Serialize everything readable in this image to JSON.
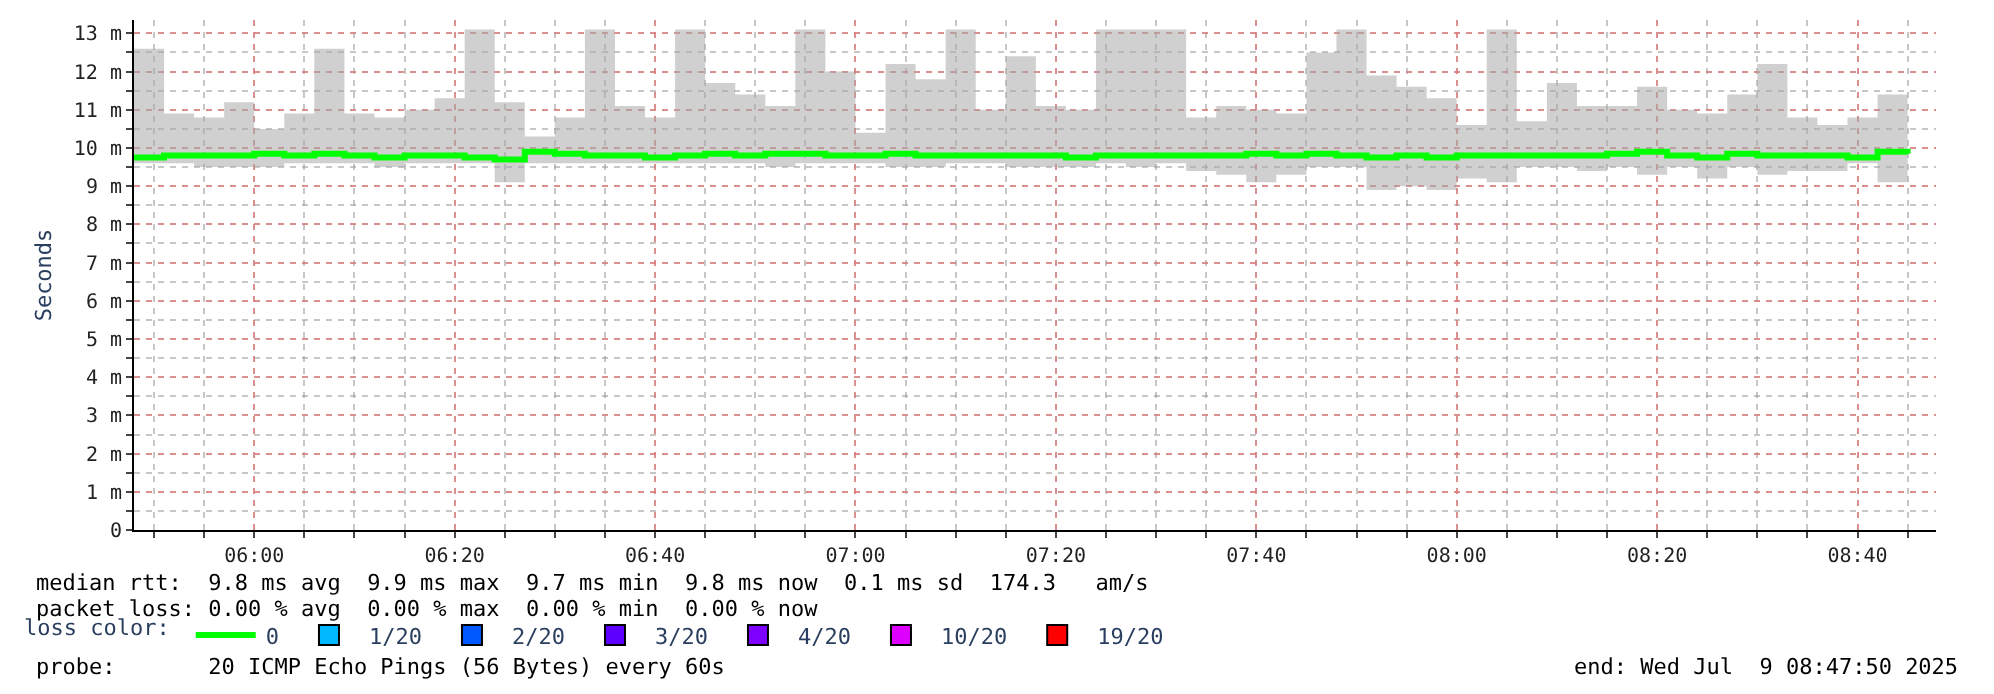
{
  "chart_data": {
    "type": "step",
    "ylabel": "Seconds",
    "legend_title": "loss color:",
    "legend": "bottom",
    "grid": true,
    "x": [
      5.8,
      5.85,
      5.9,
      5.95,
      6.0,
      6.05,
      6.1,
      6.15,
      6.2,
      6.25,
      6.3,
      6.35,
      6.4,
      6.45,
      6.5,
      6.55,
      6.6,
      6.65,
      6.7,
      6.75,
      6.8,
      6.85,
      6.9,
      6.95,
      7.0,
      7.05,
      7.1,
      7.15,
      7.2,
      7.25,
      7.3,
      7.35,
      7.4,
      7.45,
      7.5,
      7.55,
      7.6,
      7.65,
      7.7,
      7.75,
      7.8,
      7.85,
      7.9,
      7.95,
      8.0,
      8.05,
      8.1,
      8.15,
      8.2,
      8.25,
      8.3,
      8.35,
      8.4,
      8.45,
      8.5,
      8.55,
      8.6,
      8.65,
      8.7,
      8.75
    ],
    "series": [
      {
        "name": "0",
        "color": "#00ff00",
        "values": [
          9.75,
          9.8,
          9.8,
          9.8,
          9.85,
          9.8,
          9.85,
          9.8,
          9.75,
          9.8,
          9.8,
          9.75,
          9.7,
          9.9,
          9.85,
          9.8,
          9.8,
          9.75,
          9.8,
          9.85,
          9.8,
          9.85,
          9.85,
          9.8,
          9.8,
          9.85,
          9.8,
          9.8,
          9.8,
          9.8,
          9.8,
          9.75,
          9.8,
          9.8,
          9.8,
          9.8,
          9.8,
          9.85,
          9.8,
          9.85,
          9.8,
          9.75,
          9.8,
          9.75,
          9.8,
          9.8,
          9.8,
          9.8,
          9.8,
          9.85,
          9.9,
          9.8,
          9.75,
          9.85,
          9.8,
          9.8,
          9.8,
          9.75,
          9.9,
          9.85
        ],
        "upper": [
          12.6,
          10.9,
          10.8,
          11.2,
          10.5,
          10.9,
          12.6,
          10.9,
          10.8,
          11.0,
          11.3,
          13.1,
          11.2,
          10.3,
          10.8,
          13.1,
          11.1,
          10.8,
          13.1,
          11.7,
          11.4,
          11.1,
          13.1,
          12.0,
          10.4,
          12.2,
          11.8,
          13.1,
          11.0,
          12.4,
          11.1,
          11.0,
          13.1,
          13.1,
          13.1,
          10.8,
          11.1,
          11.0,
          10.9,
          12.5,
          13.1,
          11.9,
          11.6,
          11.3,
          10.6,
          13.1,
          10.7,
          11.7,
          11.1,
          11.1,
          11.6,
          11.0,
          10.9,
          11.4,
          12.2,
          10.8,
          10.6,
          10.8,
          11.4,
          12.2
        ],
        "lower": [
          9.6,
          9.6,
          9.5,
          9.5,
          9.5,
          9.6,
          9.6,
          9.6,
          9.5,
          9.6,
          9.6,
          9.6,
          9.1,
          9.6,
          9.6,
          9.6,
          9.6,
          9.6,
          9.6,
          9.6,
          9.6,
          9.5,
          9.6,
          9.6,
          9.6,
          9.5,
          9.5,
          9.6,
          9.6,
          9.5,
          9.5,
          9.5,
          9.6,
          9.5,
          9.6,
          9.4,
          9.3,
          9.1,
          9.3,
          9.5,
          9.5,
          8.9,
          9.0,
          8.9,
          9.2,
          9.1,
          9.5,
          9.5,
          9.4,
          9.5,
          9.3,
          9.5,
          9.2,
          9.5,
          9.3,
          9.4,
          9.4,
          9.6,
          9.1,
          9.5
        ]
      },
      {
        "name": "1/20",
        "color": "#00b8ff",
        "values": [
          null,
          null,
          null,
          null,
          null,
          null,
          null,
          null,
          null,
          null,
          null,
          null,
          null,
          null,
          null,
          null,
          null,
          null,
          null,
          null,
          null,
          null,
          null,
          null,
          null,
          null,
          null,
          null,
          null,
          null,
          null,
          null,
          null,
          null,
          null,
          null,
          null,
          null,
          null,
          null,
          null,
          null,
          null,
          null,
          null,
          null,
          null,
          null,
          null,
          null,
          null,
          null,
          null,
          null,
          null,
          null,
          null,
          null,
          null,
          null
        ]
      },
      {
        "name": "2/20",
        "color": "#0059ff",
        "values": [
          null,
          null,
          null,
          null,
          null,
          null,
          null,
          null,
          null,
          null,
          null,
          null,
          null,
          null,
          null,
          null,
          null,
          null,
          null,
          null,
          null,
          null,
          null,
          null,
          null,
          null,
          null,
          null,
          null,
          null,
          null,
          null,
          null,
          null,
          null,
          null,
          null,
          null,
          null,
          null,
          null,
          null,
          null,
          null,
          null,
          null,
          null,
          null,
          null,
          null,
          null,
          null,
          null,
          null,
          null,
          null,
          null,
          null,
          null,
          null
        ]
      },
      {
        "name": "3/20",
        "color": "#5e00ff",
        "values": [
          null,
          null,
          null,
          null,
          null,
          null,
          null,
          null,
          null,
          null,
          null,
          null,
          null,
          null,
          null,
          null,
          null,
          null,
          null,
          null,
          null,
          null,
          null,
          null,
          null,
          null,
          null,
          null,
          null,
          null,
          null,
          null,
          null,
          null,
          null,
          null,
          null,
          null,
          null,
          null,
          null,
          null,
          null,
          null,
          null,
          null,
          null,
          null,
          null,
          null,
          null,
          null,
          null,
          null,
          null,
          null,
          null,
          null,
          null,
          null
        ]
      },
      {
        "name": "4/20",
        "color": "#7e00ff",
        "values": [
          null,
          null,
          null,
          null,
          null,
          null,
          null,
          null,
          null,
          null,
          null,
          null,
          null,
          null,
          null,
          null,
          null,
          null,
          null,
          null,
          null,
          null,
          null,
          null,
          null,
          null,
          null,
          null,
          null,
          null,
          null,
          null,
          null,
          null,
          null,
          null,
          null,
          null,
          null,
          null,
          null,
          null,
          null,
          null,
          null,
          null,
          null,
          null,
          null,
          null,
          null,
          null,
          null,
          null,
          null,
          null,
          null,
          null,
          null,
          null
        ]
      },
      {
        "name": "10/20",
        "color": "#dd00ff",
        "values": [
          null,
          null,
          null,
          null,
          null,
          null,
          null,
          null,
          null,
          null,
          null,
          null,
          null,
          null,
          null,
          null,
          null,
          null,
          null,
          null,
          null,
          null,
          null,
          null,
          null,
          null,
          null,
          null,
          null,
          null,
          null,
          null,
          null,
          null,
          null,
          null,
          null,
          null,
          null,
          null,
          null,
          null,
          null,
          null,
          null,
          null,
          null,
          null,
          null,
          null,
          null,
          null,
          null,
          null,
          null,
          null,
          null,
          null,
          null,
          null
        ]
      },
      {
        "name": "19/20",
        "color": "#ff0000",
        "values": [
          null,
          null,
          null,
          null,
          null,
          null,
          null,
          null,
          null,
          null,
          null,
          null,
          null,
          null,
          null,
          null,
          null,
          null,
          null,
          null,
          null,
          null,
          null,
          null,
          null,
          null,
          null,
          null,
          null,
          null,
          null,
          null,
          null,
          null,
          null,
          null,
          null,
          null,
          null,
          null,
          null,
          null,
          null,
          null,
          null,
          null,
          null,
          null,
          null,
          null,
          null,
          null,
          null,
          null,
          null,
          null,
          null,
          null,
          null,
          null
        ]
      }
    ],
    "xlim": [
      5.8,
      8.7972
    ],
    "xticks": [
      {
        "value": 6.0,
        "label": "06:00"
      },
      {
        "value": 6.3333,
        "label": "06:20"
      },
      {
        "value": 6.6667,
        "label": "06:40"
      },
      {
        "value": 7.0,
        "label": "07:00"
      },
      {
        "value": 7.3333,
        "label": "07:20"
      },
      {
        "value": 7.6667,
        "label": "07:40"
      },
      {
        "value": 8.0,
        "label": "08:00"
      },
      {
        "value": 8.3333,
        "label": "08:20"
      },
      {
        "value": 8.6667,
        "label": "08:40"
      }
    ],
    "ylim": [
      0,
      13.35
    ],
    "yticks": [
      0,
      {
        "value": 1,
        "label": "1 m"
      },
      {
        "value": 2,
        "label": "2 m"
      },
      {
        "value": 3,
        "label": "3 m"
      },
      {
        "value": 4,
        "label": "4 m"
      },
      {
        "value": 5,
        "label": "5 m"
      },
      {
        "value": 6,
        "label": "6 m"
      },
      {
        "value": 7,
        "label": "7 m"
      },
      {
        "value": 8,
        "label": "8 m"
      },
      {
        "value": 9,
        "label": "9 m"
      },
      {
        "value": 10,
        "label": "10 m"
      },
      {
        "value": 11,
        "label": "11 m"
      },
      {
        "value": 12,
        "label": "12 m"
      },
      {
        "value": 13,
        "label": "13 m"
      }
    ],
    "annotations": [
      "median rtt:  9.8 ms avg  9.9 ms max  9.7 ms min  9.8 ms now  0.1 ms sd  174.3   am/s",
      "packet loss: 0.00 % avg  0.00 % max  0.00 % min  0.00 % now",
      "probe:       20 ICMP Echo Pings (56 Bytes) every 60s",
      "end: Wed Jul  9 08:47:50 2025"
    ]
  }
}
